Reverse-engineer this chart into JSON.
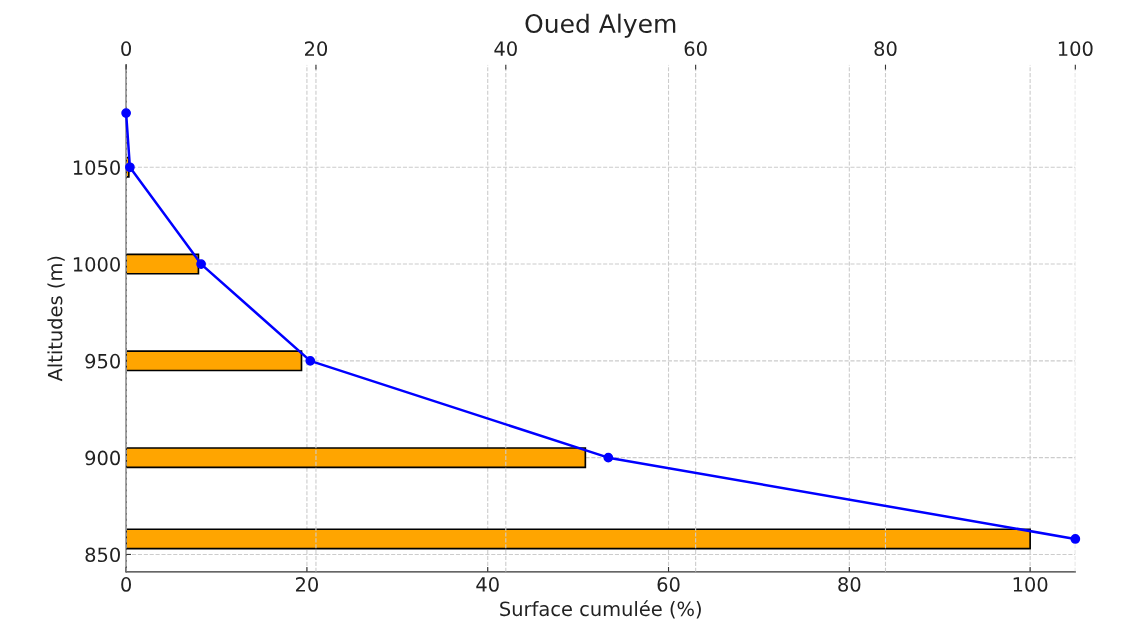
{
  "chart_data": {
    "type": "bar",
    "title": "Oued Alyem",
    "xlabel": "Surface cumulée (%)",
    "ylabel": "Altitudes (m)",
    "orientation": "horizontal",
    "xlim": [
      0,
      105
    ],
    "xticks": [
      0,
      20,
      40,
      60,
      80,
      100
    ],
    "x2lim": [
      0,
      100
    ],
    "x2ticks": [
      0,
      20,
      40,
      60,
      80,
      100
    ],
    "ylim": [
      841,
      1103
    ],
    "yticks": [
      850,
      900,
      950,
      1000,
      1050
    ],
    "grid": true,
    "series": [
      {
        "color": "#ffa500",
        "x": [
          1050,
          1000,
          950,
          900,
          858
        ],
        "values": [
          0.3,
          8,
          19.4,
          50.8,
          100
        ]
      },
      {
        "type": "line",
        "axis": "x2",
        "color": "#0000ff",
        "marker": "circle",
        "line_style": "solid",
        "x": [
          1078,
          1050,
          1000,
          950,
          900,
          858
        ],
        "values": [
          0,
          0.4,
          7.9,
          19.4,
          50.8,
          100
        ]
      }
    ]
  }
}
